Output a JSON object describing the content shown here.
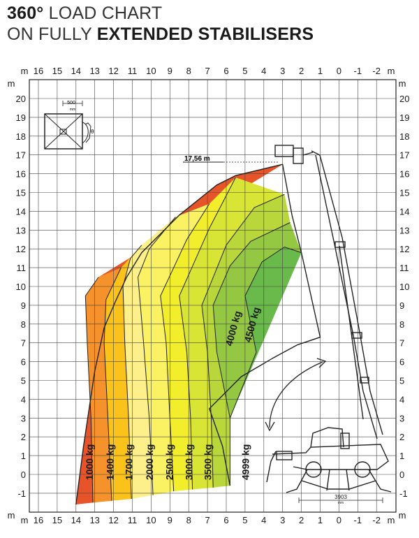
{
  "title": {
    "line1_bold": "360°",
    "line1_rest": "LOAD CHART",
    "line2_rest": "ON FULLY",
    "line2_bold": "EXTENDED STABILISERS"
  },
  "chart_data": {
    "type": "area",
    "x_unit": "m",
    "y_unit": "m",
    "x_ticks": [
      "16",
      "15",
      "14",
      "13",
      "12",
      "11",
      "10",
      "9",
      "8",
      "7",
      "6",
      "5",
      "4",
      "3",
      "2",
      "1",
      "0",
      "-1",
      "-2"
    ],
    "y_ticks": [
      "20",
      "19",
      "18",
      "17",
      "16",
      "15",
      "14",
      "13",
      "12",
      "11",
      "10",
      "9",
      "8",
      "7",
      "6",
      "5",
      "4",
      "3",
      "2",
      "1",
      "0",
      "-1"
    ],
    "xlim": [
      16.5,
      -2.5
    ],
    "ylim": [
      -1.5,
      21
    ],
    "max_height_label": "17,56 m",
    "platform_width_label": "500",
    "platform_width_unit": "mm",
    "platform_rotation_symbol": "θ",
    "stabiliser_width_label": "3903",
    "stabiliser_width_unit": "mm",
    "zones": [
      {
        "name": "1000 kg",
        "color": "#e8542a"
      },
      {
        "name": "1400 kg",
        "color": "#f5922b"
      },
      {
        "name": "1700 kg",
        "color": "#fbc21a"
      },
      {
        "name": "2000 kg",
        "color": "#fdf08a"
      },
      {
        "name": "2500 kg",
        "color": "#fbf263"
      },
      {
        "name": "3000 kg",
        "color": "#f2ee2c"
      },
      {
        "name": "3500 kg",
        "color": "#d9e534"
      },
      {
        "name": "4000 kg",
        "color": "#b9d73a"
      },
      {
        "name": "4500 kg",
        "color": "#94c843"
      },
      {
        "name": "4999 kg",
        "color": "#6ab94b"
      }
    ],
    "boundaries": [
      [
        [
          14,
          -1.6
        ],
        [
          13.6,
          1.5
        ],
        [
          13,
          5.5
        ],
        [
          12.5,
          7.8
        ],
        [
          11.9,
          9.2
        ],
        [
          11.3,
          10.5
        ],
        [
          10.5,
          11.8
        ],
        [
          9.5,
          12.8
        ],
        [
          8.5,
          13.8
        ],
        [
          7.5,
          14.6
        ],
        [
          6.5,
          15.4
        ],
        [
          5.5,
          15.9
        ],
        [
          3,
          16.5
        ]
      ],
      [
        [
          13.1,
          -1.5
        ],
        [
          13.2,
          3
        ],
        [
          13.4,
          7
        ],
        [
          13.5,
          9.5
        ],
        [
          12.8,
          10.5
        ]
      ],
      [
        [
          12.1,
          -1.4
        ],
        [
          12.3,
          3
        ],
        [
          12.5,
          7
        ],
        [
          12.4,
          9.3
        ],
        [
          11.6,
          11
        ]
      ],
      [
        [
          11.05,
          -1.3
        ],
        [
          11.2,
          3
        ],
        [
          11.4,
          7
        ],
        [
          11.5,
          10
        ],
        [
          11.1,
          11.5
        ],
        [
          10.5,
          12.2
        ]
      ],
      [
        [
          9.9,
          -1.1
        ],
        [
          10.1,
          3
        ],
        [
          10.4,
          7
        ],
        [
          10.7,
          10.5
        ],
        [
          10.1,
          12
        ],
        [
          8.7,
          13.7
        ]
      ],
      [
        [
          8.8,
          -0.9
        ],
        [
          9,
          3
        ],
        [
          9.2,
          7
        ],
        [
          9.5,
          9.5
        ],
        [
          8.1,
          12.5
        ],
        [
          6.9,
          14.4
        ]
      ],
      [
        [
          7.8,
          -0.8
        ],
        [
          7.9,
          3
        ],
        [
          8.1,
          6.5
        ],
        [
          8.5,
          9.5
        ],
        [
          6.9,
          13.1
        ],
        [
          5.5,
          15.8
        ]
      ],
      [
        [
          6.7,
          -0.7
        ],
        [
          6.8,
          3
        ],
        [
          7,
          6.5
        ],
        [
          7.3,
          9
        ],
        [
          6,
          12.2
        ],
        [
          4.5,
          14.2
        ],
        [
          2.9,
          14.9
        ]
      ],
      [
        [
          5.8,
          -0.6
        ],
        [
          5.8,
          3
        ],
        [
          6.5,
          6.5
        ],
        [
          6.7,
          9
        ],
        [
          5.8,
          11.1
        ],
        [
          4.7,
          12.4
        ],
        [
          2.6,
          13.4
        ]
      ],
      [
        [
          5.8,
          3
        ],
        [
          4.4,
          6.5
        ],
        [
          5,
          9.5
        ],
        [
          4.1,
          11.3
        ],
        [
          2.9,
          12.1
        ],
        [
          2,
          11.8
        ]
      ]
    ],
    "inner_boundary": [
      [
        5.8,
        -0.6
      ],
      [
        6.2,
        1.5
      ],
      [
        6.9,
        3.5
      ],
      [
        5.2,
        5.2
      ],
      [
        3.5,
        6.2
      ],
      [
        2.2,
        6.9
      ],
      [
        1,
        7.3
      ],
      [
        2,
        11.8
      ],
      [
        2.5,
        13.8
      ],
      [
        3,
        16.5
      ]
    ]
  }
}
